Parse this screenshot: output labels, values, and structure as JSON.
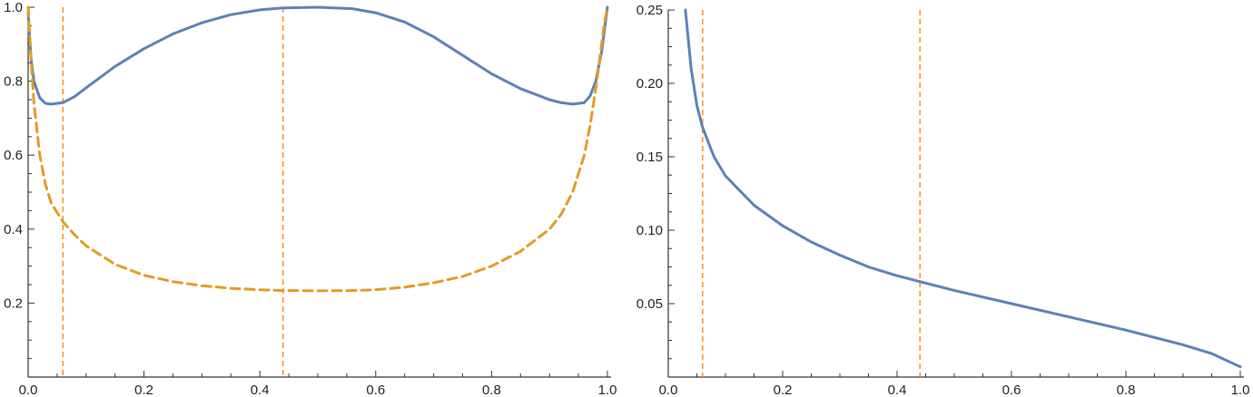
{
  "chart_data": [
    {
      "type": "line",
      "title": "",
      "xlabel": "",
      "ylabel": "",
      "xlim": [
        0.0,
        1.0
      ],
      "ylim": [
        0.0,
        1.0
      ],
      "grid": false,
      "x_ticks": [
        "0.0",
        "0.2",
        "0.4",
        "0.6",
        "0.8",
        "1.0"
      ],
      "y_ticks": [
        "0.2",
        "0.4",
        "0.6",
        "0.8",
        "1.0"
      ],
      "series": [
        {
          "style": "solid",
          "color": "#5e81b5",
          "x": [
            0.0,
            0.005,
            0.01,
            0.02,
            0.03,
            0.04,
            0.06,
            0.08,
            0.1,
            0.15,
            0.2,
            0.25,
            0.3,
            0.35,
            0.4,
            0.44,
            0.5,
            0.56,
            0.6,
            0.65,
            0.7,
            0.75,
            0.8,
            0.85,
            0.9,
            0.92,
            0.94,
            0.96,
            0.97,
            0.98,
            0.99,
            0.995,
            1.0
          ],
          "y": [
            0.985,
            0.86,
            0.8,
            0.755,
            0.74,
            0.738,
            0.742,
            0.758,
            0.782,
            0.84,
            0.888,
            0.928,
            0.958,
            0.98,
            0.993,
            0.998,
            1.0,
            0.996,
            0.985,
            0.96,
            0.92,
            0.87,
            0.82,
            0.78,
            0.75,
            0.742,
            0.738,
            0.742,
            0.76,
            0.8,
            0.88,
            0.94,
            1.0
          ]
        },
        {
          "style": "dashed",
          "color": "#e19c24",
          "x": [
            0.0,
            0.005,
            0.01,
            0.02,
            0.03,
            0.04,
            0.06,
            0.08,
            0.1,
            0.15,
            0.2,
            0.25,
            0.3,
            0.35,
            0.4,
            0.44,
            0.5,
            0.56,
            0.6,
            0.65,
            0.7,
            0.75,
            0.8,
            0.85,
            0.9,
            0.92,
            0.94,
            0.96,
            0.97,
            0.98,
            0.99,
            0.995,
            1.0
          ],
          "y": [
            1.0,
            0.86,
            0.74,
            0.6,
            0.52,
            0.47,
            0.42,
            0.385,
            0.355,
            0.305,
            0.275,
            0.258,
            0.247,
            0.24,
            0.236,
            0.234,
            0.233,
            0.234,
            0.236,
            0.243,
            0.255,
            0.272,
            0.3,
            0.34,
            0.4,
            0.44,
            0.5,
            0.6,
            0.68,
            0.78,
            0.9,
            0.96,
            1.0
          ]
        }
      ],
      "vlines": [
        0.06,
        0.44
      ],
      "vline_color": "#ff8c1a"
    },
    {
      "type": "line",
      "title": "",
      "xlabel": "",
      "ylabel": "",
      "xlim": [
        0.0,
        1.0
      ],
      "ylim": [
        0.0,
        0.25
      ],
      "grid": false,
      "x_ticks": [
        "0.0",
        "0.2",
        "0.4",
        "0.6",
        "0.8",
        "1.0"
      ],
      "y_ticks": [
        "0.05",
        "0.10",
        "0.15",
        "0.20",
        "0.25"
      ],
      "series": [
        {
          "style": "solid",
          "color": "#5e81b5",
          "x": [
            0.03,
            0.04,
            0.05,
            0.06,
            0.08,
            0.1,
            0.15,
            0.2,
            0.25,
            0.3,
            0.35,
            0.4,
            0.44,
            0.5,
            0.6,
            0.7,
            0.8,
            0.9,
            0.95,
            1.0
          ],
          "y": [
            0.25,
            0.21,
            0.185,
            0.17,
            0.15,
            0.137,
            0.117,
            0.103,
            0.092,
            0.083,
            0.075,
            0.069,
            0.065,
            0.059,
            0.05,
            0.041,
            0.032,
            0.022,
            0.016,
            0.007
          ]
        }
      ],
      "vlines": [
        0.06,
        0.44
      ],
      "vline_color": "#ff8c1a"
    }
  ]
}
